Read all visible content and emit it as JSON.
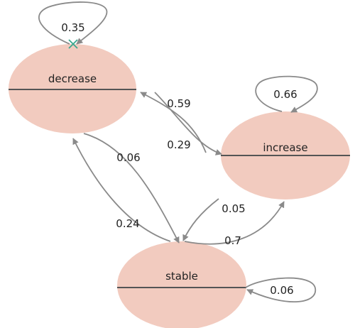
{
  "colors": {
    "state_fill": "#f2cbbf",
    "divider": "#555555",
    "edge": "#8a8a8a",
    "cross_marker": "#3aa88e"
  },
  "states": {
    "decrease": {
      "label": "decrease"
    },
    "increase": {
      "label": "increase"
    },
    "stable": {
      "label": "stable"
    }
  },
  "transitions": {
    "decrease_to_decrease": {
      "from": "decrease",
      "to": "decrease",
      "value": "0.35"
    },
    "decrease_to_increase": {
      "from": "decrease",
      "to": "increase",
      "value": "0.59"
    },
    "increase_to_decrease": {
      "from": "increase",
      "to": "decrease",
      "value": "0.29"
    },
    "decrease_to_stable": {
      "from": "decrease",
      "to": "stable",
      "value": "0.06"
    },
    "stable_to_decrease": {
      "from": "stable",
      "to": "decrease",
      "value": "0.24"
    },
    "increase_to_stable": {
      "from": "increase",
      "to": "stable",
      "value": "0.05"
    },
    "stable_to_increase": {
      "from": "stable",
      "to": "increase",
      "value": "0.7"
    },
    "increase_to_increase": {
      "from": "increase",
      "to": "increase",
      "value": "0.66"
    },
    "stable_to_stable": {
      "from": "stable",
      "to": "stable",
      "value": "0.06"
    }
  }
}
